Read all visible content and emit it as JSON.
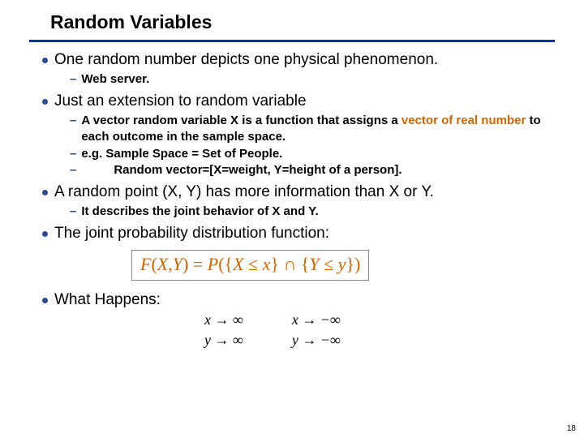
{
  "title": "Random Variables",
  "bullets": {
    "b1": "One random number depicts one physical phenomenon.",
    "b1s1": "Web server.",
    "b2": "Just an extension to random variable",
    "b2s1_pre": "A vector random variable X is a function that assigns a ",
    "b2s1_hl": "vector of real number",
    "b2s1_post": " to each outcome in the sample space.",
    "b2s2": "e.g. Sample Space = Set of People.",
    "b2s3": "Random vector=[X=weight, Y=height of a person].",
    "b3": "A random point (X, Y) has more information than X or Y.",
    "b3s1": "It describes the joint behavior of X and Y.",
    "b4": "The joint probability distribution function:",
    "b5": "What Happens:"
  },
  "formula": "F(X,Y) = P({X ≤ x} ∩ {Y ≤ y})",
  "limits": {
    "r1c1": "x → ∞",
    "r1c2": "x → −∞",
    "r2c1": "y → ∞",
    "r2c2": "y → −∞"
  },
  "page_number": "18",
  "colors": {
    "underline": "#003399",
    "bullet_dot": "#2a4b8d",
    "highlight": "#cc6600",
    "text": "#000000",
    "background": "#ffffff"
  }
}
